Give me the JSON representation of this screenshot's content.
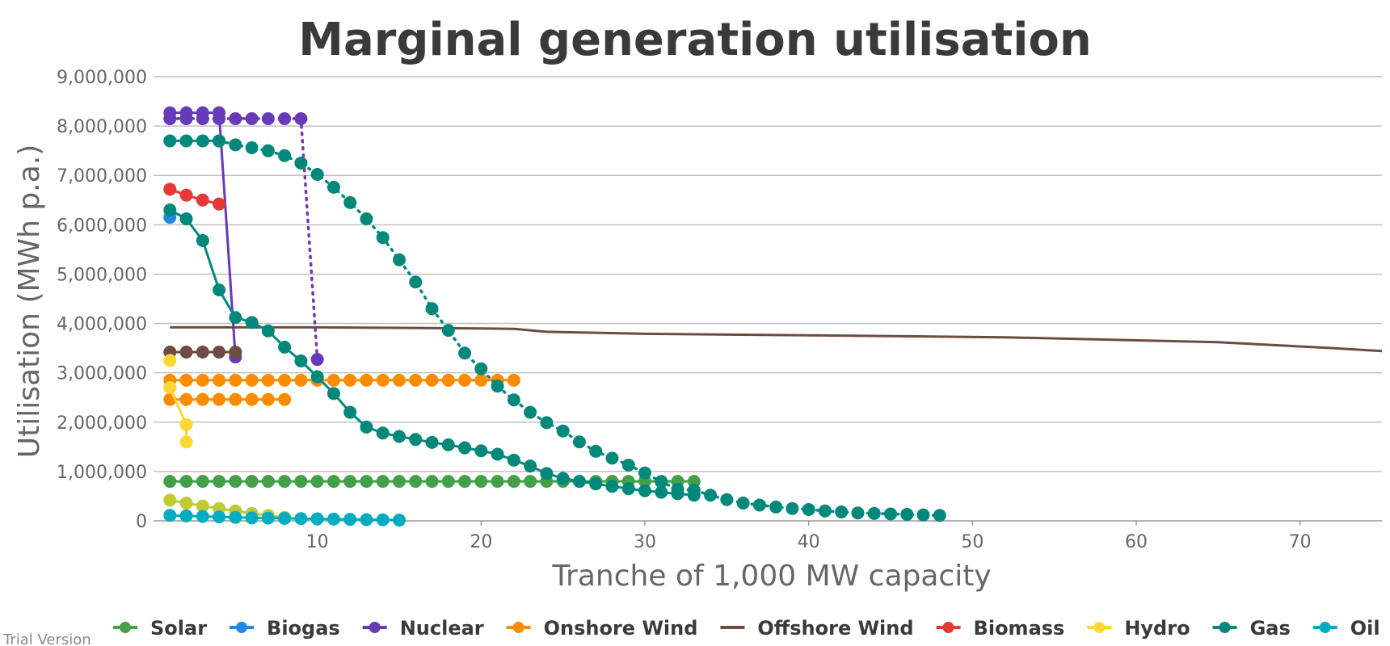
{
  "watermark": "Trial Version",
  "chart_data": {
    "type": "scatter",
    "title": "Marginal generation utilisation",
    "xlabel": "Tranche of 1,000 MW capacity",
    "ylabel": "Utilisation (MWh p.a.)",
    "xlim": [
      0,
      75
    ],
    "ylim": [
      0,
      9000000
    ],
    "xticks": [
      10,
      20,
      30,
      40,
      50,
      60,
      70
    ],
    "yticks": [
      0,
      1000000,
      2000000,
      3000000,
      4000000,
      5000000,
      6000000,
      7000000,
      8000000,
      9000000
    ],
    "ytick_labels": [
      "0",
      "1,000,000",
      "2,000,000",
      "3,000,000",
      "4,000,000",
      "5,000,000",
      "6,000,000",
      "7,000,000",
      "8,000,000",
      "9,000,000"
    ],
    "xtick_labels": [
      "10",
      "20",
      "30",
      "40",
      "50",
      "60",
      "70"
    ],
    "grid": true,
    "legend_position": "bottom",
    "series": [
      {
        "name": "Solar",
        "color": "#43a047",
        "line": "solid",
        "markers": true,
        "legend": true,
        "x": [
          1,
          2,
          3,
          4,
          5,
          6,
          7,
          8,
          9,
          10,
          11,
          12,
          13,
          14,
          15,
          16,
          17,
          18,
          19,
          20,
          21,
          22,
          23,
          24,
          25,
          26,
          27,
          28,
          29,
          30,
          31,
          32,
          33
        ],
        "y": [
          800000,
          800000,
          800000,
          800000,
          800000,
          800000,
          800000,
          800000,
          800000,
          800000,
          800000,
          800000,
          800000,
          800000,
          800000,
          800000,
          800000,
          800000,
          800000,
          800000,
          800000,
          800000,
          800000,
          800000,
          800000,
          800000,
          800000,
          800000,
          800000,
          800000,
          800000,
          800000,
          800000
        ]
      },
      {
        "name": "Biogas",
        "color": "#1e88e5",
        "line": "solid",
        "markers": true,
        "legend": true,
        "x": [
          1
        ],
        "y": [
          6150000
        ]
      },
      {
        "name": "Nuclear",
        "color": "#673ab7",
        "line": "solid",
        "markers": true,
        "legend": true,
        "x": [
          1,
          2,
          3,
          4,
          5
        ],
        "y": [
          8270000,
          8270000,
          8270000,
          8270000,
          3320000
        ]
      },
      {
        "name": "Nuclear",
        "color": "#673ab7",
        "line": "dotted",
        "markers": true,
        "legend": false,
        "x": [
          1,
          2,
          3,
          4,
          5,
          6,
          7,
          8,
          9,
          10
        ],
        "y": [
          8150000,
          8150000,
          8150000,
          8150000,
          8150000,
          8150000,
          8150000,
          8150000,
          8150000,
          3270000
        ]
      },
      {
        "name": "Onshore Wind",
        "color": "#fb8c00",
        "line": "solid",
        "markers": true,
        "legend": true,
        "x": [
          1,
          2,
          3,
          4,
          5,
          6,
          7,
          8
        ],
        "y": [
          2460000,
          2460000,
          2460000,
          2460000,
          2460000,
          2460000,
          2460000,
          2460000
        ]
      },
      {
        "name": "Onshore Wind",
        "color": "#fb8c00",
        "line": "solid",
        "markers": true,
        "legend": false,
        "x": [
          1,
          2,
          3,
          4,
          5,
          6,
          7,
          8,
          9,
          10,
          11,
          12,
          13,
          14,
          15,
          16,
          17,
          18,
          19,
          20,
          21,
          22
        ],
        "y": [
          2850000,
          2850000,
          2850000,
          2850000,
          2850000,
          2850000,
          2850000,
          2850000,
          2850000,
          2850000,
          2850000,
          2850000,
          2850000,
          2850000,
          2850000,
          2850000,
          2850000,
          2850000,
          2850000,
          2850000,
          2850000,
          2850000
        ]
      },
      {
        "name": "Offshore Wind",
        "color": "#6d4c41",
        "line": "solid",
        "markers": false,
        "legend": true,
        "x": [
          1,
          10,
          20,
          22,
          24,
          30,
          40,
          52,
          65,
          72,
          75
        ],
        "y": [
          3920000,
          3920000,
          3900000,
          3890000,
          3830000,
          3790000,
          3760000,
          3720000,
          3620000,
          3500000,
          3440000
        ]
      },
      {
        "name": "Offshore Wind",
        "color": "#6d4c41",
        "line": "solid",
        "markers": true,
        "legend": false,
        "x": [
          1,
          2,
          3,
          4,
          5
        ],
        "y": [
          3420000,
          3420000,
          3420000,
          3420000,
          3420000
        ]
      },
      {
        "name": "Biomass",
        "color": "#e53935",
        "line": "solid",
        "markers": true,
        "legend": true,
        "x": [
          1,
          2,
          3,
          4
        ],
        "y": [
          6720000,
          6600000,
          6500000,
          6420000
        ]
      },
      {
        "name": "Hydro",
        "color": "#fdd835",
        "line": "solid",
        "markers": true,
        "legend": true,
        "x": [
          1,
          2,
          2
        ],
        "y": [
          2700000,
          1950000,
          1600000
        ]
      },
      {
        "name": "Hydro",
        "color": "#fdd835",
        "line": "solid",
        "markers": true,
        "legend": false,
        "x": [
          1
        ],
        "y": [
          3250000
        ]
      },
      {
        "name": "Hydro",
        "color": "#c0ca33",
        "line": "solid",
        "markers": true,
        "legend": false,
        "x": [
          1,
          2,
          3,
          4,
          5,
          6,
          7,
          8
        ],
        "y": [
          420000,
          360000,
          300000,
          250000,
          200000,
          150000,
          110000,
          70000
        ]
      },
      {
        "name": "Gas",
        "color": "#00897b",
        "line": "solid",
        "markers": true,
        "legend": true,
        "x": [
          1,
          2,
          3,
          4,
          5,
          6,
          7,
          8,
          9,
          10,
          11,
          12,
          13,
          14,
          15,
          16,
          17,
          18,
          19,
          20,
          21,
          22,
          23,
          24,
          25,
          26,
          27,
          28,
          29,
          30,
          31,
          32,
          33
        ],
        "y": [
          6300000,
          6120000,
          5680000,
          4680000,
          4120000,
          4020000,
          3850000,
          3520000,
          3240000,
          2920000,
          2580000,
          2200000,
          1900000,
          1780000,
          1710000,
          1650000,
          1590000,
          1540000,
          1480000,
          1420000,
          1350000,
          1230000,
          1110000,
          960000,
          860000,
          800000,
          750000,
          700000,
          650000,
          610000,
          580000,
          550000,
          520000
        ]
      },
      {
        "name": "Gas",
        "color": "#00897b",
        "line": "solid",
        "markers": true,
        "legend": false,
        "x": [
          1,
          2,
          3,
          4
        ],
        "y": [
          7700000,
          7700000,
          7700000,
          7700000
        ]
      },
      {
        "name": "Gas",
        "color": "#00897b",
        "line": "dotted",
        "markers": true,
        "legend": false,
        "x": [
          4,
          5,
          6,
          7,
          8,
          9,
          10,
          11,
          12,
          13,
          14,
          15,
          16,
          17,
          18,
          19,
          20,
          21,
          22,
          23,
          24,
          25,
          26,
          27,
          28,
          29,
          30,
          31,
          32,
          33,
          34,
          35,
          36,
          37,
          38,
          39,
          40,
          41,
          42,
          43,
          44,
          45,
          46,
          47,
          48
        ],
        "y": [
          7700000,
          7620000,
          7560000,
          7500000,
          7400000,
          7250000,
          7020000,
          6760000,
          6450000,
          6120000,
          5740000,
          5290000,
          4840000,
          4300000,
          3860000,
          3400000,
          3080000,
          2730000,
          2450000,
          2200000,
          1990000,
          1820000,
          1600000,
          1410000,
          1270000,
          1130000,
          970000,
          790000,
          640000,
          620000,
          520000,
          430000,
          360000,
          320000,
          280000,
          250000,
          230000,
          200000,
          180000,
          160000,
          150000,
          140000,
          130000,
          120000,
          110000
        ]
      },
      {
        "name": "Oil",
        "color": "#00acc1",
        "line": "solid",
        "markers": true,
        "legend": true,
        "x": [
          1,
          2,
          3,
          4,
          5,
          6,
          7,
          8,
          9,
          10,
          11,
          12,
          13,
          14,
          15
        ],
        "y": [
          110000,
          100000,
          90000,
          80000,
          70000,
          60000,
          55000,
          50000,
          45000,
          40000,
          35000,
          30000,
          25000,
          20000,
          15000
        ]
      }
    ]
  }
}
